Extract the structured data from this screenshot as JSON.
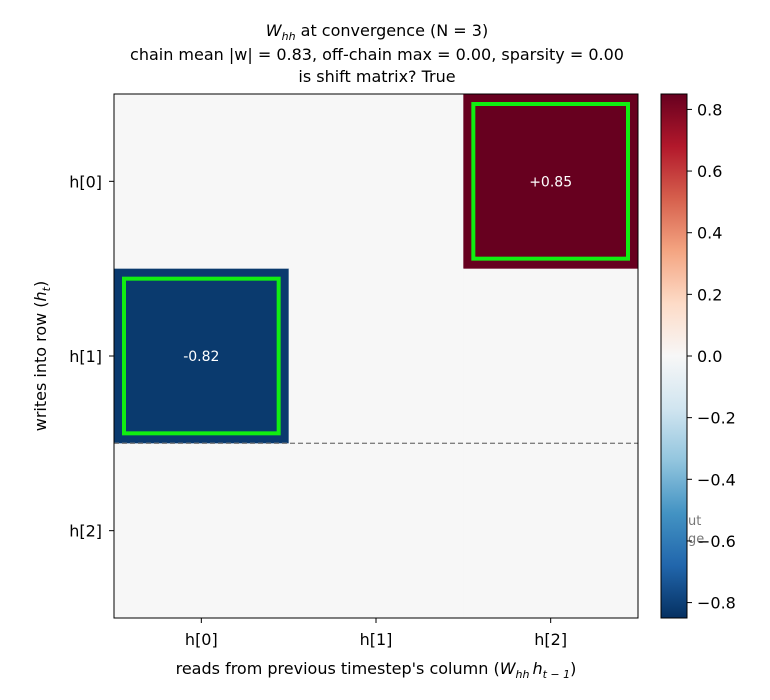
{
  "chart_data": {
    "type": "heatmap",
    "title_symbol": "W",
    "title_symbol_sub": "hh",
    "title_rest": " at convergence  (N = 3)",
    "subtitle_line1": "chain mean |w| = 0.83, off-chain max = 0.00, sparsity = 0.00",
    "subtitle_line2": "is shift matrix? True",
    "xlabel_text": "reads from previous timestep's column (",
    "xlabel_math_w": "W",
    "xlabel_math_w_sub": "hh",
    "xlabel_math_h": "h",
    "xlabel_math_h_sub": "t − 1",
    "xlabel_close": ")",
    "ylabel_text": "writes into row (",
    "ylabel_math_h": "h",
    "ylabel_math_h_sub": "t",
    "ylabel_close": ")",
    "x_ticks": [
      "h[0]",
      "h[1]",
      "h[2]"
    ],
    "y_ticks": [
      "h[0]",
      "h[1]",
      "h[2]"
    ],
    "matrix": [
      [
        0.0,
        0.0,
        0.85
      ],
      [
        -0.82,
        0.0,
        0.0
      ],
      [
        0.0,
        0.0,
        0.0
      ]
    ],
    "cell_labels": [
      {
        "row": 0,
        "col": 2,
        "text": "+0.85"
      },
      {
        "row": 1,
        "col": 0,
        "text": "-0.82"
      }
    ],
    "highlighted_cells": [
      {
        "row": 0,
        "col": 2
      },
      {
        "row": 1,
        "col": 0
      }
    ],
    "highlight_color": "#11ee11",
    "dashed_line_after_row": 1,
    "dashed_line_color": "#808080",
    "colorbar": {
      "colormap": "RdBu_r",
      "vmin": -0.85,
      "vmax": 0.85,
      "ticks": [
        -0.8,
        -0.6,
        -0.4,
        -0.2,
        0.0,
        0.2,
        0.4,
        0.6,
        0.8
      ],
      "tick_labels": [
        "−0.8",
        "−0.6",
        "−0.4",
        "−0.2",
        "0.0",
        "0.2",
        "0.4",
        "0.6",
        "0.8"
      ]
    },
    "annotation_partial_lines": [
      "ut",
      "ge"
    ]
  }
}
